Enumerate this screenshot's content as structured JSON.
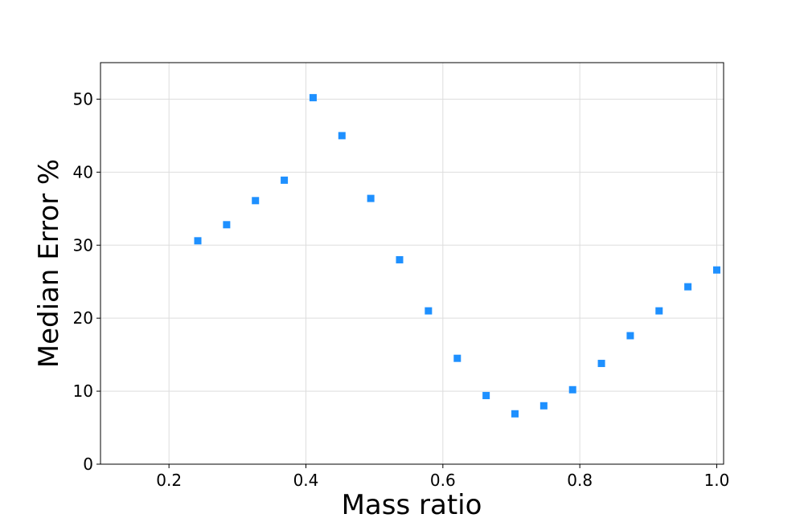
{
  "chart_data": {
    "type": "scatter",
    "xlabel": "Mass ratio",
    "ylabel": "Median Error %",
    "xlim": [
      0.1,
      1.01
    ],
    "ylim": [
      0,
      55
    ],
    "xticks": [
      0.2,
      0.4,
      0.6,
      0.8,
      1.0
    ],
    "xtick_labels": [
      "0.2",
      "0.4",
      "0.6",
      "0.8",
      "1.0"
    ],
    "yticks": [
      0,
      10,
      20,
      30,
      40,
      50
    ],
    "ytick_labels": [
      "0",
      "10",
      "20",
      "30",
      "40",
      "50"
    ],
    "grid": true,
    "marker": "square",
    "color": "#1e90ff",
    "series": [
      {
        "x": [
          0.2421,
          0.2842,
          0.3263,
          0.3684,
          0.4105,
          0.4526,
          0.4947,
          0.5368,
          0.5789,
          0.6211,
          0.6632,
          0.7053,
          0.7474,
          0.7895,
          0.8316,
          0.8737,
          0.9158,
          0.9579,
          1.0
        ],
        "y": [
          30.6,
          32.8,
          36.1,
          38.9,
          50.2,
          45.0,
          36.4,
          28.0,
          21.0,
          14.5,
          9.4,
          6.9,
          8.0,
          10.2,
          13.8,
          17.6,
          21.0,
          24.3,
          26.6
        ]
      }
    ]
  }
}
